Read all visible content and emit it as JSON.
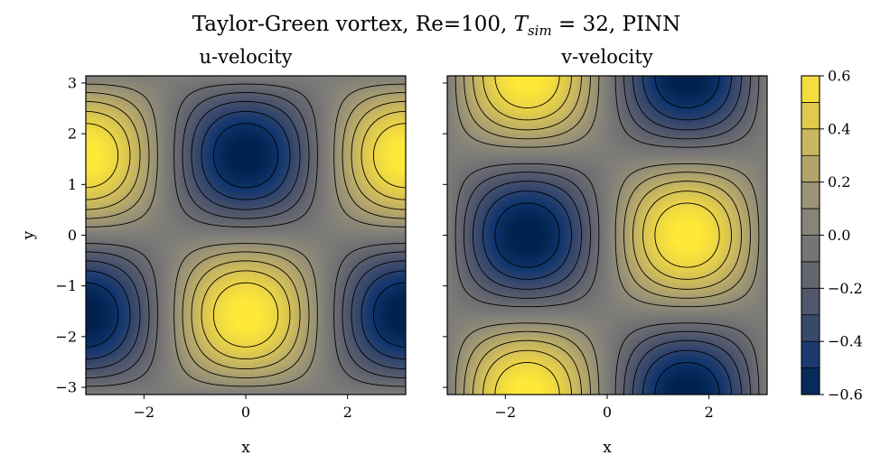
{
  "figure": {
    "title_main": "Taylor-Green vortex, Re=100, ",
    "title_math_var": "T",
    "title_math_sub": "sim",
    "title_tail": " = 32, PINN"
  },
  "chart_data": [
    {
      "type": "heatmap",
      "title": "u-velocity",
      "xlabel": "x",
      "ylabel": "y",
      "xlim": [
        -3.14159,
        3.14159
      ],
      "ylim": [
        -3.14159,
        3.14159
      ],
      "field": "u = -cos(x) * sin(y) * amplitude",
      "amplitude": 0.62,
      "xticks": [
        -2,
        0,
        2
      ],
      "xtick_labels": [
        "−2",
        "0",
        "2"
      ],
      "yticks": [
        -3,
        -2,
        -1,
        0,
        1,
        2,
        3
      ],
      "ytick_labels": [
        "−3",
        "−2",
        "−1",
        "0",
        "1",
        "2",
        "3"
      ],
      "contour_levels": [
        -0.5,
        -0.4,
        -0.3,
        -0.2,
        -0.1,
        0.1,
        0.2,
        0.3,
        0.4,
        0.5
      ],
      "negative_contours": "dashed"
    },
    {
      "type": "heatmap",
      "title": "v-velocity",
      "xlabel": "x",
      "ylabel": "",
      "xlim": [
        -3.14159,
        3.14159
      ],
      "ylim": [
        -3.14159,
        3.14159
      ],
      "field": "v = sin(x) * cos(y) * amplitude",
      "amplitude": 0.62,
      "xticks": [
        -2,
        0,
        2
      ],
      "xtick_labels": [
        "−2",
        "0",
        "2"
      ],
      "yticks": [
        -3,
        -2,
        -1,
        0,
        1,
        2,
        3
      ],
      "contour_levels": [
        -0.5,
        -0.4,
        -0.3,
        -0.2,
        -0.1,
        0.1,
        0.2,
        0.3,
        0.4,
        0.5
      ],
      "negative_contours": "dashed"
    }
  ],
  "colorbar": {
    "colormap": "cividis",
    "vmin": -0.6,
    "vmax": 0.6,
    "n_bands": 12,
    "ticks": [
      -0.6,
      -0.4,
      -0.2,
      0.0,
      0.2,
      0.4,
      0.6
    ],
    "tick_labels": [
      "−0.6",
      "−0.4",
      "−0.2",
      "0.0",
      "0.2",
      "0.4",
      "0.6"
    ]
  },
  "colors": {
    "negative": "#00224e",
    "neutral": "#7c7b78",
    "positive": "#fee838"
  }
}
